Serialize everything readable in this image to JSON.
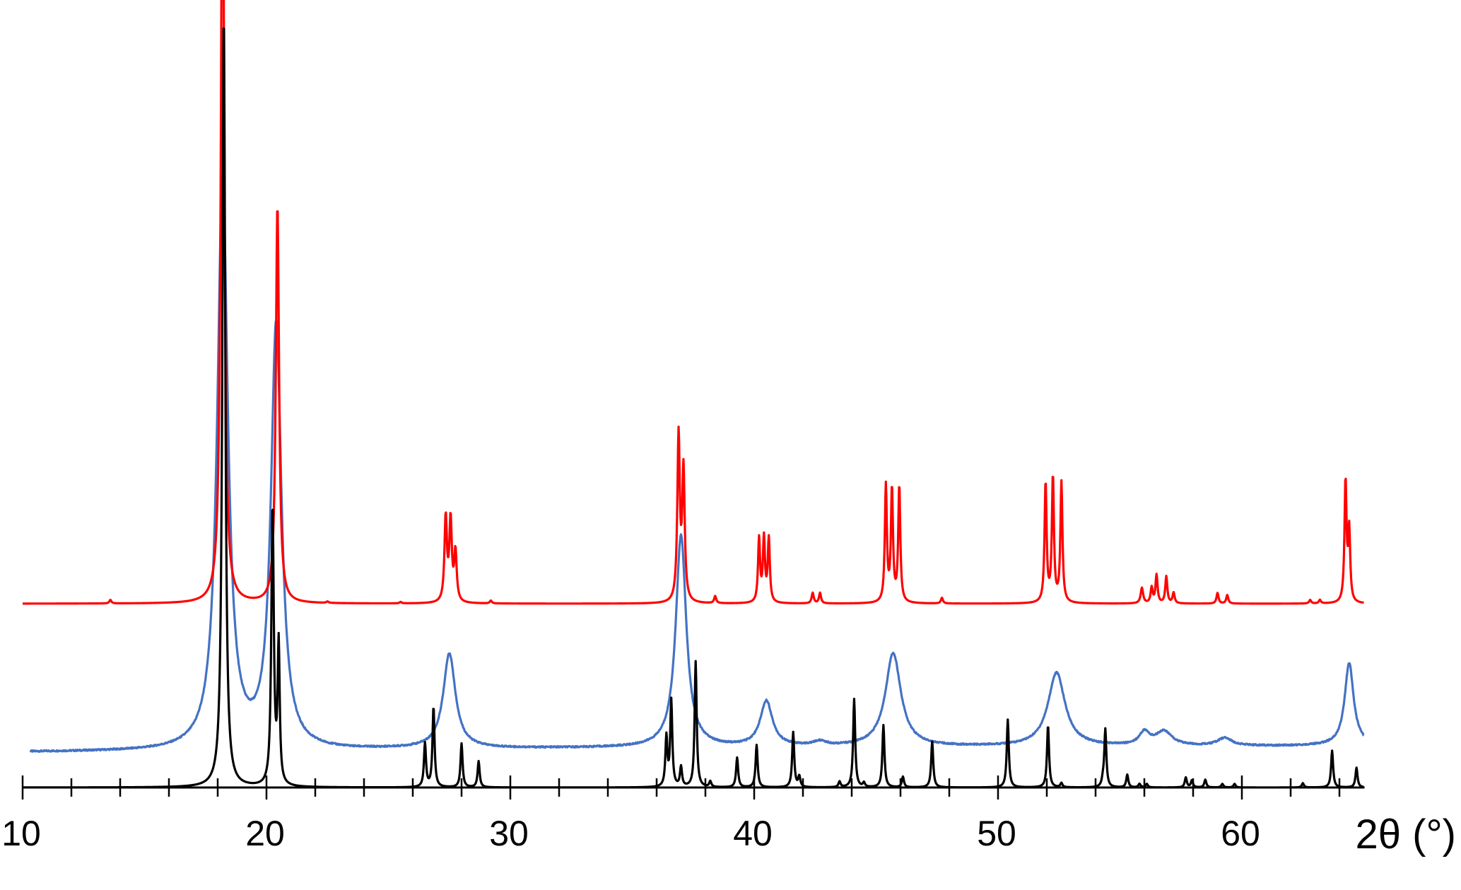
{
  "chart_data": {
    "type": "line",
    "title": "",
    "xlabel": "2θ (°)",
    "ylabel": "",
    "xlim": [
      10,
      65
    ],
    "x_major_ticks": [
      "10",
      "20",
      "30",
      "40",
      "50",
      "60"
    ],
    "x_minor_step": 2,
    "grid": false,
    "legend": "none",
    "series": [
      {
        "color": "#4472c4",
        "baseline": [
          [
            10.3,
            0.5
          ],
          [
            18,
            0.51
          ],
          [
            20.5,
            0.5
          ],
          [
            26,
            0.54
          ],
          [
            27,
            0.542
          ],
          [
            36,
            0.56
          ],
          [
            40,
            0.565
          ],
          [
            42,
            0.57
          ],
          [
            50,
            0.575
          ],
          [
            56,
            0.58
          ],
          [
            62,
            0.585
          ],
          [
            65,
            0.6
          ]
        ],
        "peaks": [
          {
            "x": 18.2,
            "height": 8.05,
            "width": 0.26
          },
          {
            "x": 20.4,
            "height": 6.0,
            "width": 0.26
          },
          {
            "x": 27.5,
            "height": 1.34,
            "width": 0.3
          },
          {
            "x": 37.0,
            "height": 3.0,
            "width": 0.26
          },
          {
            "x": 40.5,
            "height": 0.64,
            "width": 0.3
          },
          {
            "x": 42.7,
            "height": 0.06,
            "width": 0.3
          },
          {
            "x": 45.7,
            "height": 1.32,
            "width": 0.38
          },
          {
            "x": 52.4,
            "height": 1.04,
            "width": 0.42
          },
          {
            "x": 56.0,
            "height": 0.18,
            "width": 0.25
          },
          {
            "x": 56.8,
            "height": 0.2,
            "width": 0.4
          },
          {
            "x": 59.3,
            "height": 0.11,
            "width": 0.35
          },
          {
            "x": 64.4,
            "height": 1.16,
            "width": 0.22
          }
        ]
      },
      {
        "color": "#ff0000",
        "baseline": [
          [
            10,
            2.6
          ],
          [
            65,
            2.6
          ]
        ],
        "peaks": [
          {
            "x": 13.6,
            "height": 0.05,
            "width": 0.05
          },
          {
            "x": 18.2,
            "height": 11.65,
            "width": 0.08
          },
          {
            "x": 20.45,
            "height": 5.62,
            "width": 0.08
          },
          {
            "x": 22.5,
            "height": 0.02,
            "width": 0.05
          },
          {
            "x": 25.5,
            "height": 0.02,
            "width": 0.05
          },
          {
            "x": 27.35,
            "height": 1.2,
            "width": 0.06
          },
          {
            "x": 27.55,
            "height": 1.15,
            "width": 0.06
          },
          {
            "x": 27.75,
            "height": 0.7,
            "width": 0.06
          },
          {
            "x": 29.2,
            "height": 0.04,
            "width": 0.05
          },
          {
            "x": 36.9,
            "height": 2.35,
            "width": 0.06
          },
          {
            "x": 37.1,
            "height": 1.85,
            "width": 0.06
          },
          {
            "x": 38.4,
            "height": 0.1,
            "width": 0.05
          },
          {
            "x": 40.2,
            "height": 0.9,
            "width": 0.05
          },
          {
            "x": 40.4,
            "height": 0.9,
            "width": 0.05
          },
          {
            "x": 40.6,
            "height": 0.9,
            "width": 0.05
          },
          {
            "x": 42.4,
            "height": 0.15,
            "width": 0.05
          },
          {
            "x": 42.7,
            "height": 0.15,
            "width": 0.05
          },
          {
            "x": 45.4,
            "height": 1.65,
            "width": 0.05
          },
          {
            "x": 45.65,
            "height": 1.6,
            "width": 0.05
          },
          {
            "x": 45.95,
            "height": 1.65,
            "width": 0.05
          },
          {
            "x": 47.7,
            "height": 0.08,
            "width": 0.05
          },
          {
            "x": 51.95,
            "height": 1.7,
            "width": 0.05
          },
          {
            "x": 52.25,
            "height": 1.78,
            "width": 0.05
          },
          {
            "x": 52.6,
            "height": 1.7,
            "width": 0.05
          },
          {
            "x": 55.9,
            "height": 0.22,
            "width": 0.06
          },
          {
            "x": 56.3,
            "height": 0.22,
            "width": 0.05
          },
          {
            "x": 56.5,
            "height": 0.4,
            "width": 0.05
          },
          {
            "x": 56.9,
            "height": 0.38,
            "width": 0.05
          },
          {
            "x": 57.2,
            "height": 0.15,
            "width": 0.05
          },
          {
            "x": 59.0,
            "height": 0.15,
            "width": 0.05
          },
          {
            "x": 59.4,
            "height": 0.12,
            "width": 0.05
          },
          {
            "x": 62.8,
            "height": 0.05,
            "width": 0.05
          },
          {
            "x": 63.2,
            "height": 0.05,
            "width": 0.05
          },
          {
            "x": 64.25,
            "height": 1.72,
            "width": 0.05
          },
          {
            "x": 64.4,
            "height": 1.0,
            "width": 0.05
          }
        ]
      },
      {
        "color": "#000000",
        "baseline": [
          [
            10,
            0.0
          ],
          [
            65,
            0.0
          ]
        ],
        "peaks": [
          {
            "x": 18.25,
            "height": 10.95,
            "width": 0.07
          },
          {
            "x": 20.25,
            "height": 3.94,
            "width": 0.06
          },
          {
            "x": 20.5,
            "height": 1.96,
            "width": 0.05
          },
          {
            "x": 26.5,
            "height": 0.62,
            "width": 0.05
          },
          {
            "x": 26.85,
            "height": 1.14,
            "width": 0.05
          },
          {
            "x": 28.0,
            "height": 0.62,
            "width": 0.05
          },
          {
            "x": 28.7,
            "height": 0.37,
            "width": 0.05
          },
          {
            "x": 36.4,
            "height": 0.7,
            "width": 0.05
          },
          {
            "x": 36.6,
            "height": 1.22,
            "width": 0.05
          },
          {
            "x": 37.0,
            "height": 0.28,
            "width": 0.05
          },
          {
            "x": 37.6,
            "height": 1.78,
            "width": 0.05
          },
          {
            "x": 38.2,
            "height": 0.08,
            "width": 0.05
          },
          {
            "x": 39.3,
            "height": 0.42,
            "width": 0.05
          },
          {
            "x": 40.1,
            "height": 0.6,
            "width": 0.05
          },
          {
            "x": 41.6,
            "height": 0.78,
            "width": 0.05
          },
          {
            "x": 41.85,
            "height": 0.15,
            "width": 0.05
          },
          {
            "x": 43.5,
            "height": 0.08,
            "width": 0.05
          },
          {
            "x": 44.1,
            "height": 1.25,
            "width": 0.05
          },
          {
            "x": 44.5,
            "height": 0.06,
            "width": 0.05
          },
          {
            "x": 45.3,
            "height": 0.88,
            "width": 0.05
          },
          {
            "x": 46.1,
            "height": 0.15,
            "width": 0.05
          },
          {
            "x": 47.3,
            "height": 0.65,
            "width": 0.05
          },
          {
            "x": 50.4,
            "height": 0.96,
            "width": 0.05
          },
          {
            "x": 52.05,
            "height": 0.88,
            "width": 0.05
          },
          {
            "x": 52.6,
            "height": 0.06,
            "width": 0.05
          },
          {
            "x": 54.3,
            "height": 0.08,
            "width": 0.05
          },
          {
            "x": 54.4,
            "height": 0.82,
            "width": 0.05
          },
          {
            "x": 55.3,
            "height": 0.18,
            "width": 0.05
          },
          {
            "x": 55.8,
            "height": 0.05,
            "width": 0.05
          },
          {
            "x": 56.1,
            "height": 0.05,
            "width": 0.05
          },
          {
            "x": 57.7,
            "height": 0.14,
            "width": 0.05
          },
          {
            "x": 57.95,
            "height": 0.1,
            "width": 0.05
          },
          {
            "x": 58.5,
            "height": 0.11,
            "width": 0.05
          },
          {
            "x": 59.2,
            "height": 0.05,
            "width": 0.05
          },
          {
            "x": 59.7,
            "height": 0.05,
            "width": 0.05
          },
          {
            "x": 62.5,
            "height": 0.06,
            "width": 0.05
          },
          {
            "x": 63.7,
            "height": 0.52,
            "width": 0.05
          },
          {
            "x": 64.7,
            "height": 0.28,
            "width": 0.05
          }
        ]
      }
    ]
  }
}
